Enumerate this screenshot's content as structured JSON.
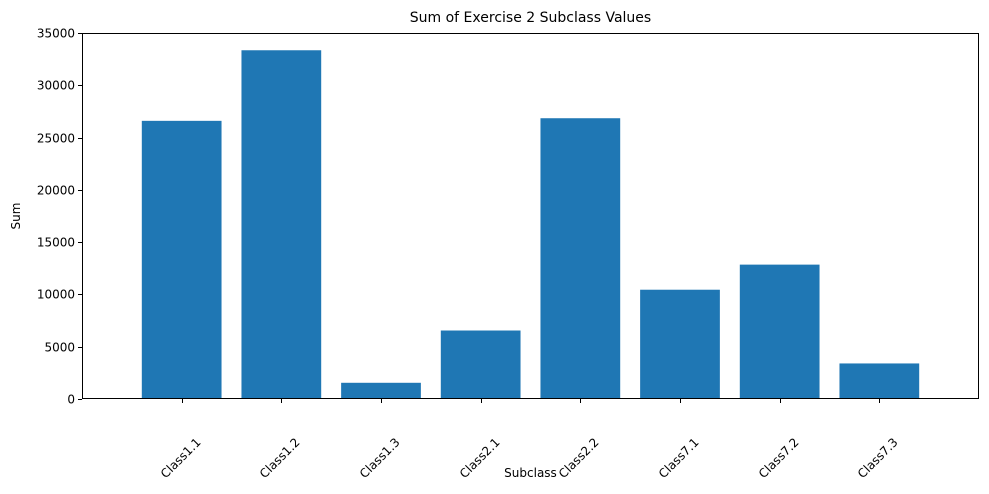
{
  "chart_data": {
    "type": "bar",
    "title": "Sum of Exercise 2 Subclass Values",
    "xlabel": "Subclass",
    "ylabel": "Sum",
    "categories": [
      "Class1.1",
      "Class1.2",
      "Class1.3",
      "Class2.1",
      "Class2.2",
      "Class7.1",
      "Class7.2",
      "Class7.3"
    ],
    "values": [
      26600,
      33350,
      1550,
      6550,
      26850,
      10450,
      12850,
      3400
    ],
    "ylim": [
      0,
      35000
    ],
    "yticks": [
      0,
      5000,
      10000,
      15000,
      20000,
      25000,
      30000,
      35000
    ],
    "ytick_labels": [
      "0",
      "5000",
      "10000",
      "15000",
      "20000",
      "25000",
      "30000",
      "35000"
    ],
    "xtick_rotation_deg": 45,
    "bar_color": "#1f77b4",
    "grid": false,
    "legend": false
  }
}
